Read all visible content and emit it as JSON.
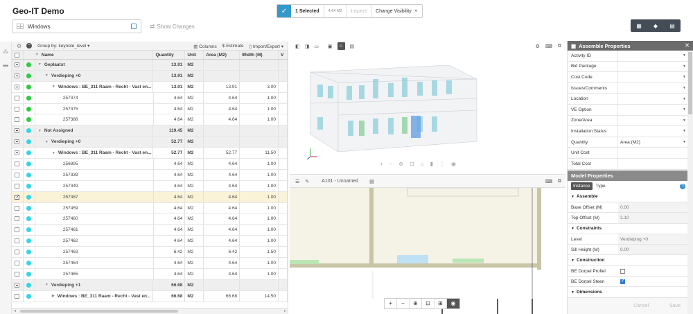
{
  "app": {
    "title": "Geo-IT Demo"
  },
  "search": {
    "value": "Windows"
  },
  "show_changes": "Show Changes",
  "selection": {
    "count_label": "1 Selected",
    "size": "4.64 M2",
    "inspect": "Inspect",
    "change_visibility": "Change Visibility"
  },
  "top_tools": [
    "table-icon",
    "cube-icon",
    "document-icon"
  ],
  "table_toolbar": {
    "group_by": "Group by: keynote_level",
    "columns": "Columns",
    "estimate": "$ Estimate",
    "import_export": "Import/Export"
  },
  "table": {
    "headers": {
      "name": "Name",
      "quantity": "Quantity",
      "unit": "Unit",
      "area": "Area (M2)",
      "width": "Width (M)",
      "v": "V"
    },
    "rows": [
      {
        "kind": "group",
        "level": 0,
        "check": "dash",
        "dot": "#2ecc40",
        "name": "Geplaatst",
        "qty": "13.91",
        "unit": "M2",
        "area": "",
        "width": ""
      },
      {
        "kind": "group",
        "level": 1,
        "check": "dash",
        "dot": "#2ecc40",
        "name": "Verdieping +0",
        "qty": "13.91",
        "unit": "M2",
        "area": "",
        "width": ""
      },
      {
        "kind": "item",
        "level": 2,
        "check": "dash",
        "dot": "#2ecc40",
        "name": "Windows : BE_311 Raam - Recht - Vast en...",
        "qty": "13.91",
        "unit": "M2",
        "area": "13.91",
        "width": "3.00",
        "bold": true
      },
      {
        "kind": "item",
        "level": 3,
        "check": "",
        "dot": "#2ecc40",
        "name": "257374",
        "qty": "4.64",
        "unit": "M2",
        "area": "4.64",
        "width": "1.00"
      },
      {
        "kind": "item",
        "level": 3,
        "check": "",
        "dot": "#2ecc40",
        "name": "257375",
        "qty": "4.64",
        "unit": "M2",
        "area": "4.64",
        "width": "1.00"
      },
      {
        "kind": "item",
        "level": 3,
        "check": "",
        "dot": "#2ecc40",
        "name": "257388",
        "qty": "4.64",
        "unit": "M2",
        "area": "4.64",
        "width": "1.00"
      },
      {
        "kind": "group",
        "level": 0,
        "check": "dash",
        "dot": "#34d6e6",
        "name": "Not Assigned",
        "qty": "119.45",
        "unit": "M2",
        "area": "",
        "width": ""
      },
      {
        "kind": "group",
        "level": 1,
        "check": "dash",
        "dot": "#34d6e6",
        "name": "Verdieping +0",
        "qty": "52.77",
        "unit": "M2",
        "area": "",
        "width": ""
      },
      {
        "kind": "item",
        "level": 2,
        "check": "dash",
        "dot": "#34d6e6",
        "name": "Windows : BE_311 Raam - Recht - Vast en...",
        "qty": "52.77",
        "unit": "M2",
        "area": "52.77",
        "width": "11.50",
        "bold": true
      },
      {
        "kind": "item",
        "level": 3,
        "check": "",
        "dot": "#34d6e6",
        "name": "256895",
        "qty": "4.64",
        "unit": "M2",
        "area": "4.64",
        "width": "1.00"
      },
      {
        "kind": "item",
        "level": 3,
        "check": "",
        "dot": "#34d6e6",
        "name": "257339",
        "qty": "4.64",
        "unit": "M2",
        "area": "4.64",
        "width": "1.00"
      },
      {
        "kind": "item",
        "level": 3,
        "check": "",
        "dot": "#34d6e6",
        "name": "257349",
        "qty": "4.64",
        "unit": "M2",
        "area": "4.64",
        "width": "1.00"
      },
      {
        "kind": "item",
        "level": 3,
        "check": "checked",
        "dot": "#34d6e6",
        "name": "257387",
        "qty": "4.64",
        "unit": "M2",
        "area": "4.64",
        "width": "1.00",
        "selected": true
      },
      {
        "kind": "item",
        "level": 3,
        "check": "",
        "dot": "#34d6e6",
        "name": "257459",
        "qty": "4.64",
        "unit": "M2",
        "area": "4.64",
        "width": "1.00"
      },
      {
        "kind": "item",
        "level": 3,
        "check": "",
        "dot": "#34d6e6",
        "name": "257460",
        "qty": "4.64",
        "unit": "M2",
        "area": "4.64",
        "width": "1.00"
      },
      {
        "kind": "item",
        "level": 3,
        "check": "",
        "dot": "#34d6e6",
        "name": "257461",
        "qty": "4.64",
        "unit": "M2",
        "area": "4.64",
        "width": "1.00"
      },
      {
        "kind": "item",
        "level": 3,
        "check": "",
        "dot": "#34d6e6",
        "name": "257462",
        "qty": "4.64",
        "unit": "M2",
        "area": "4.64",
        "width": "1.00"
      },
      {
        "kind": "item",
        "level": 3,
        "check": "",
        "dot": "#34d6e6",
        "name": "257463",
        "qty": "6.42",
        "unit": "M2",
        "area": "6.42",
        "width": "1.50"
      },
      {
        "kind": "item",
        "level": 3,
        "check": "",
        "dot": "#34d6e6",
        "name": "257464",
        "qty": "4.64",
        "unit": "M2",
        "area": "4.64",
        "width": "1.00"
      },
      {
        "kind": "item",
        "level": 3,
        "check": "",
        "dot": "#34d6e6",
        "name": "257465",
        "qty": "4.64",
        "unit": "M2",
        "area": "4.64",
        "width": "1.00"
      },
      {
        "kind": "group",
        "level": 1,
        "check": "dash",
        "dot": "#34d6e6",
        "name": "Verdieping +1",
        "qty": "66.68",
        "unit": "M2",
        "area": "",
        "width": ""
      },
      {
        "kind": "item",
        "level": 2,
        "check": "",
        "dot": "#34d6e6",
        "name": "Windows : BE_311 Raam - Recht - Vast en...",
        "qty": "66.68",
        "unit": "M2",
        "area": "66.68",
        "width": "14.50",
        "bold": true,
        "collapsed": true
      }
    ]
  },
  "viewer2d": {
    "sheet_label": "A101 - Unnamed"
  },
  "assemble": {
    "title": "Assemble Properties",
    "rows": [
      {
        "label": "Activity ID",
        "value": "",
        "dd": true
      },
      {
        "label": "Bid Package",
        "value": "",
        "dd": true
      },
      {
        "label": "Cost Code",
        "value": "",
        "dd": true
      },
      {
        "label": "Issues/Comments",
        "value": "",
        "dd": true
      },
      {
        "label": "Location",
        "value": "",
        "dd": true
      },
      {
        "label": "VE Option",
        "value": "",
        "dd": true
      },
      {
        "label": "Zone/Area",
        "value": "",
        "dd": true
      },
      {
        "label": "Installation Status",
        "value": "",
        "dd": true
      },
      {
        "label": "Quantity",
        "value": "Area (M2)",
        "dd": true
      },
      {
        "label": "Unit Cost",
        "value": "",
        "dd": false
      },
      {
        "label": "Total Cost",
        "value": "",
        "dd": false
      }
    ]
  },
  "model": {
    "title": "Model Properties",
    "tab_instance": "Instance",
    "tab_type": "Type",
    "sections": [
      {
        "title": "Assemble",
        "rows": [
          {
            "label": "Base Offset (M)",
            "value": "0.00"
          },
          {
            "label": "Top Offset (M)",
            "value": "2.10"
          }
        ]
      },
      {
        "title": "Constraints",
        "rows": [
          {
            "label": "Level",
            "value": "Verdieping +0"
          },
          {
            "label": "Sill Height (M)",
            "value": "0.00"
          }
        ]
      },
      {
        "title": "Construction",
        "rows": [
          {
            "label": "BE Dorpel Profiel",
            "check": false
          },
          {
            "label": "BE Dorpel Steen",
            "check": true
          }
        ]
      },
      {
        "title": "Dimensions",
        "rows": []
      }
    ]
  },
  "footer": {
    "cancel": "Cancel",
    "save": "Save"
  },
  "colors": {
    "accent": "#3399cc",
    "placed": "#2ecc40",
    "unassigned": "#34d6e6"
  }
}
